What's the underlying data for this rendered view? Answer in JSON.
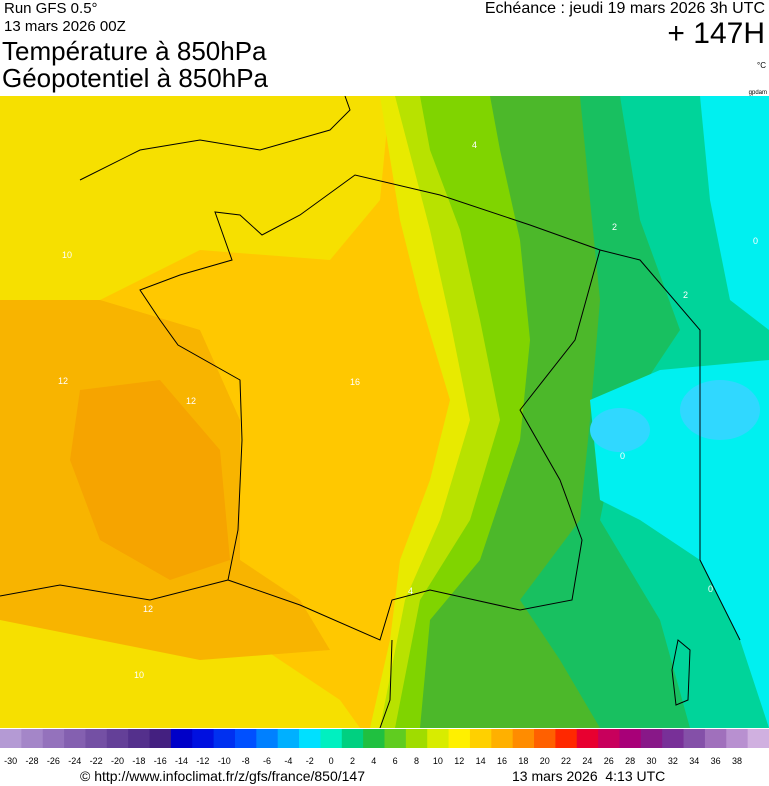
{
  "header": {
    "run": "Run GFS 0.5°",
    "run_date": "13 mars 2026 00Z",
    "title_1": "Température à 850hPa",
    "title_2": "Géopotentiel à 850hPa",
    "valid": "Echéance : jeudi 19 mars 2026 3h UTC",
    "lead": "+ 147H",
    "unit": "°C",
    "source_tag": "gpdam"
  },
  "map": {
    "contour_labels": [
      10,
      12,
      12,
      12,
      10,
      16,
      4,
      2,
      2,
      0,
      0,
      0,
      4
    ]
  },
  "colorbar": {
    "labels": [
      -30,
      -28,
      -26,
      -24,
      -22,
      -20,
      -18,
      -16,
      -14,
      -12,
      -10,
      -8,
      -6,
      -4,
      -2,
      0,
      2,
      4,
      6,
      8,
      10,
      12,
      14,
      16,
      18,
      20,
      22,
      24,
      26,
      28,
      30,
      32,
      34,
      36,
      38
    ],
    "colors": [
      "#b49ad4",
      "#a486c8",
      "#9472bc",
      "#8460b0",
      "#7450a4",
      "#644098",
      "#54308c",
      "#442080",
      "#0000c8",
      "#0010e0",
      "#0030f0",
      "#0050ff",
      "#0080ff",
      "#00b0ff",
      "#00e0ff",
      "#00f0c0",
      "#00d080",
      "#20c040",
      "#60cc20",
      "#a0dc00",
      "#d8ec00",
      "#fff000",
      "#ffd000",
      "#ffb000",
      "#ff8c00",
      "#ff6000",
      "#ff2800",
      "#e80030",
      "#c8005c",
      "#a80078",
      "#881888",
      "#783098",
      "#8450a8",
      "#a070bc",
      "#b890d0",
      "#d0b0e0"
    ]
  },
  "footer": {
    "url": "© http://www.infoclimat.fr/z/gfs/france/850/147",
    "date": "13 mars 2026  4:13 UTC"
  }
}
